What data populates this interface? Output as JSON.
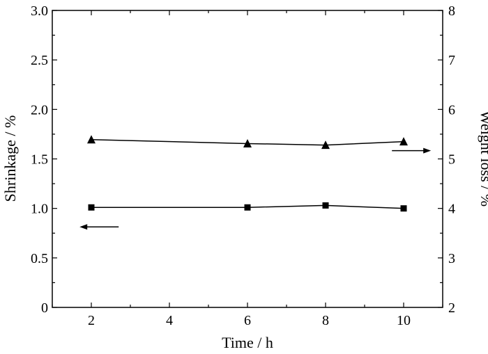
{
  "chart_data": {
    "type": "line",
    "xlabel": "Time / h",
    "ylabel_left": "Shrinkage / %",
    "ylabel_right": "Weight loss / %",
    "xlim": [
      1,
      11
    ],
    "ylim_left": [
      0,
      3.0
    ],
    "ylim_right": [
      2,
      8
    ],
    "x_ticks": [
      2,
      4,
      6,
      8,
      10
    ],
    "y_left_ticks": [
      "0",
      "0.5",
      "1.0",
      "1.5",
      "2.0",
      "2.5",
      "3.0"
    ],
    "y_right_ticks": [
      "2",
      "3",
      "4",
      "5",
      "6",
      "7",
      "8"
    ],
    "grid": false,
    "series": [
      {
        "axis": "left",
        "marker": "square",
        "color": "#000000",
        "x": [
          2,
          6,
          8,
          10
        ],
        "y": [
          1.01,
          1.01,
          1.03,
          1.0
        ]
      },
      {
        "axis": "right",
        "marker": "triangle",
        "color": "#000000",
        "x": [
          2,
          6,
          8,
          10
        ],
        "y": [
          5.39,
          5.31,
          5.28,
          5.35
        ]
      }
    ],
    "annotations": [
      {
        "type": "arrow",
        "direction": "left",
        "series": 0
      },
      {
        "type": "arrow",
        "direction": "right",
        "series": 1
      }
    ]
  }
}
